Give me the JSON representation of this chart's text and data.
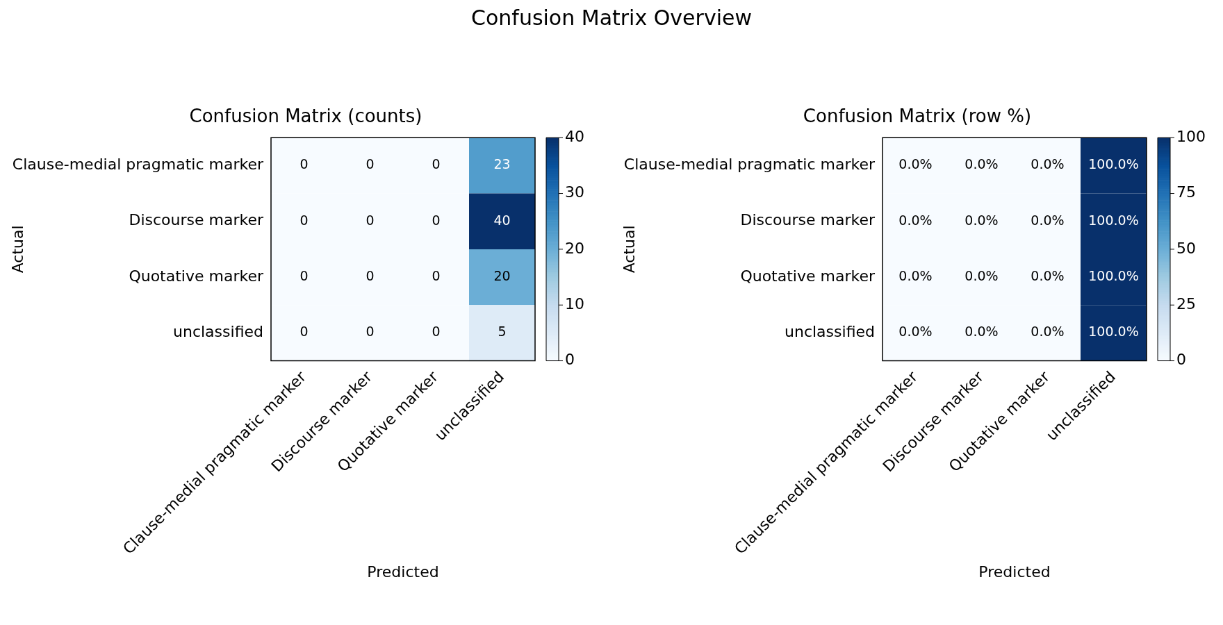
{
  "chart_data": [
    {
      "type": "heatmap",
      "title": "Confusion Matrix Overview",
      "subtitle": "Confusion Matrix (counts)",
      "xlabel": "Predicted",
      "ylabel": "Actual",
      "categories": [
        "Clause-medial pragmatic marker",
        "Discourse marker",
        "Quotative marker",
        "unclassified"
      ],
      "y_categories": [
        "Clause-medial pragmatic marker",
        "Discourse marker",
        "Quotative marker",
        "unclassified"
      ],
      "cells": [
        [
          0,
          0,
          0,
          23
        ],
        [
          0,
          0,
          0,
          40
        ],
        [
          0,
          0,
          0,
          20
        ],
        [
          0,
          0,
          0,
          5
        ]
      ],
      "data_labels": true,
      "clim": [
        0,
        40
      ],
      "cticks": [
        0,
        10,
        20,
        30,
        40
      ]
    },
    {
      "type": "heatmap",
      "subtitle": "Confusion Matrix (row %)",
      "xlabel": "Predicted",
      "ylabel": "Actual",
      "categories": [
        "Clause-medial pragmatic marker",
        "Discourse marker",
        "Quotative marker",
        "unclassified"
      ],
      "y_categories": [
        "Clause-medial pragmatic marker",
        "Discourse marker",
        "Quotative marker",
        "unclassified"
      ],
      "cells": [
        [
          0,
          0,
          0,
          100
        ],
        [
          0,
          0,
          0,
          100
        ],
        [
          0,
          0,
          0,
          100
        ],
        [
          0,
          0,
          0,
          100
        ]
      ],
      "cell_labels": [
        [
          "0.0%",
          "0.0%",
          "0.0%",
          "100.0%"
        ],
        [
          "0.0%",
          "0.0%",
          "0.0%",
          "100.0%"
        ],
        [
          "0.0%",
          "0.0%",
          "0.0%",
          "100.0%"
        ],
        [
          "0.0%",
          "0.0%",
          "0.0%",
          "100.0%"
        ]
      ],
      "clim": [
        0,
        100
      ],
      "cticks": [
        0,
        25,
        50,
        75,
        100
      ]
    }
  ]
}
